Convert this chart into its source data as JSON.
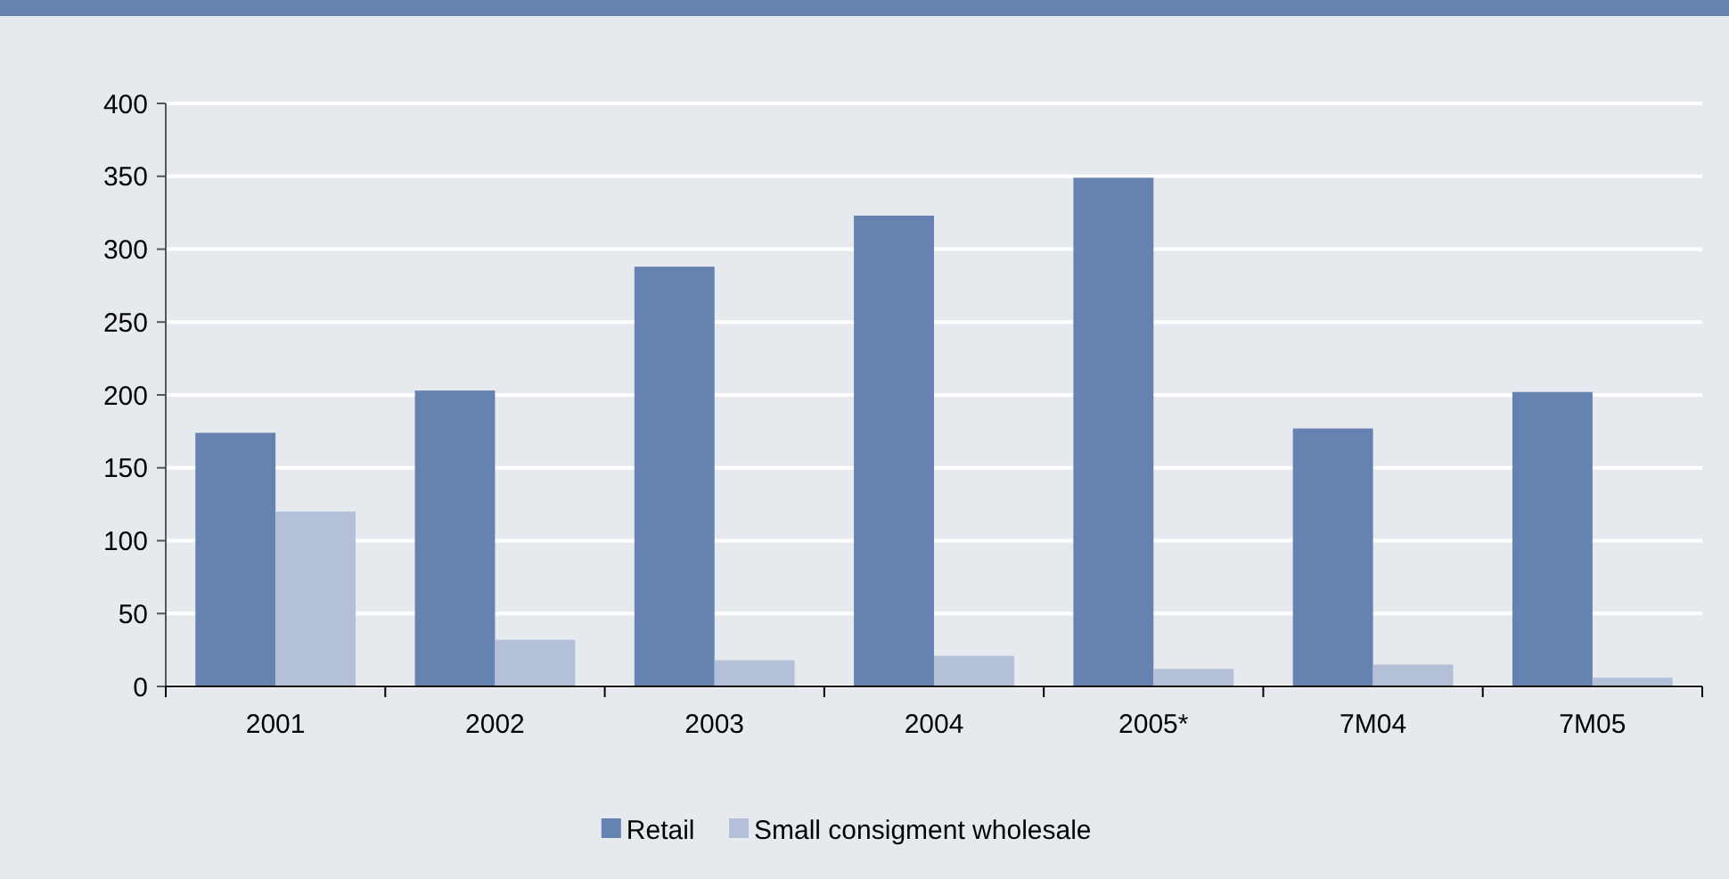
{
  "chart_data": {
    "type": "bar",
    "categories": [
      "2001",
      "2002",
      "2003",
      "2004",
      "2005*",
      "7M04",
      "7M05"
    ],
    "series": [
      {
        "name": "Retail",
        "color": "#6682b0",
        "values": [
          174,
          203,
          288,
          323,
          349,
          177,
          202
        ]
      },
      {
        "name": "Small consigment wholesale",
        "color": "#b3c0d8",
        "values": [
          120,
          32,
          18,
          21,
          12,
          15,
          6
        ]
      }
    ],
    "ylim": [
      0,
      400
    ],
    "yticks": [
      0,
      50,
      100,
      150,
      200,
      250,
      300,
      350,
      400
    ],
    "grid": "y",
    "legend": "bottom"
  }
}
